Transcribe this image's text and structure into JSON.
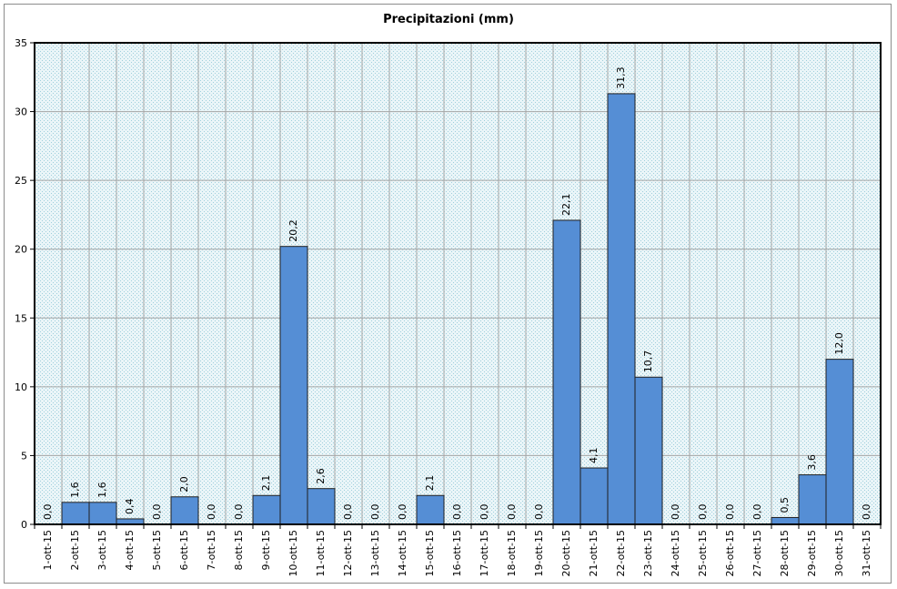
{
  "chart_data": {
    "type": "bar",
    "title": "Precipitazioni (mm)",
    "xlabel": "",
    "ylabel": "",
    "ylim": [
      0,
      35
    ],
    "yticks": [
      "0",
      "5",
      "10",
      "15",
      "20",
      "25",
      "30",
      "35"
    ],
    "grid": true,
    "legend": "none",
    "categories": [
      "1-ott-15",
      "2-ott-15",
      "3-ott-15",
      "4-ott-15",
      "5-ott-15",
      "6-ott-15",
      "7-ott-15",
      "8-ott-15",
      "9-ott-15",
      "10-ott-15",
      "11-ott-15",
      "12-ott-15",
      "13-ott-15",
      "14-ott-15",
      "15-ott-15",
      "16-ott-15",
      "17-ott-15",
      "18-ott-15",
      "19-ott-15",
      "20-ott-15",
      "21-ott-15",
      "22-ott-15",
      "23-ott-15",
      "24-ott-15",
      "25-ott-15",
      "26-ott-15",
      "27-ott-15",
      "28-ott-15",
      "29-ott-15",
      "30-ott-15",
      "31-ott-15"
    ],
    "values": [
      0.0,
      1.6,
      1.6,
      0.4,
      0.0,
      2.0,
      0.0,
      0.0,
      2.1,
      20.2,
      2.6,
      0.0,
      0.0,
      0.0,
      2.1,
      0.0,
      0.0,
      0.0,
      0.0,
      22.1,
      4.1,
      31.3,
      10.7,
      0.0,
      0.0,
      0.0,
      0.0,
      0.5,
      3.6,
      12.0,
      0.0
    ],
    "data_labels": [
      "0,0",
      "1,6",
      "1,6",
      "0,4",
      "0,0",
      "2,0",
      "0,0",
      "0,0",
      "2,1",
      "20,2",
      "2,6",
      "0,0",
      "0,0",
      "0,0",
      "2,1",
      "0,0",
      "0,0",
      "0,0",
      "0,0",
      "22,1",
      "4,1",
      "31,3",
      "10,7",
      "0,0",
      "0,0",
      "0,0",
      "0,0",
      "0,5",
      "3,6",
      "12,0",
      "0,0"
    ],
    "colors": {
      "bar_fill": "#558ed5",
      "bar_stroke": "#1f1f1f",
      "plot_bg": "#dbeef3",
      "grid": "#a6a6a6"
    }
  }
}
